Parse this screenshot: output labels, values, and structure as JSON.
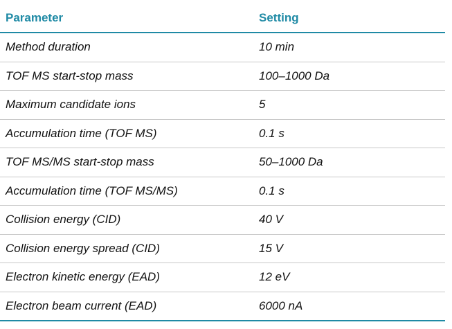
{
  "table": {
    "headers": {
      "parameter": "Parameter",
      "setting": "Setting"
    },
    "rows": [
      {
        "parameter": "Method duration",
        "setting": "10 min"
      },
      {
        "parameter": "TOF MS start-stop mass",
        "setting": "100–1000 Da"
      },
      {
        "parameter": "Maximum candidate ions",
        "setting": "5"
      },
      {
        "parameter": "Accumulation time (TOF MS)",
        "setting": "0.1 s"
      },
      {
        "parameter": "TOF MS/MS start-stop mass",
        "setting": "50–1000 Da"
      },
      {
        "parameter": "Accumulation time (TOF MS/MS)",
        "setting": "0.1 s"
      },
      {
        "parameter": "Collision energy (CID)",
        "setting": "40 V"
      },
      {
        "parameter": "Collision energy spread (CID)",
        "setting": "15 V"
      },
      {
        "parameter": "Electron kinetic energy (EAD)",
        "setting": "12 eV"
      },
      {
        "parameter": "Electron beam current (EAD)",
        "setting": " 6000 nA"
      }
    ]
  },
  "colors": {
    "accent": "#1f8aa5",
    "row_divider": "#c8c8c8",
    "text": "#111111"
  }
}
